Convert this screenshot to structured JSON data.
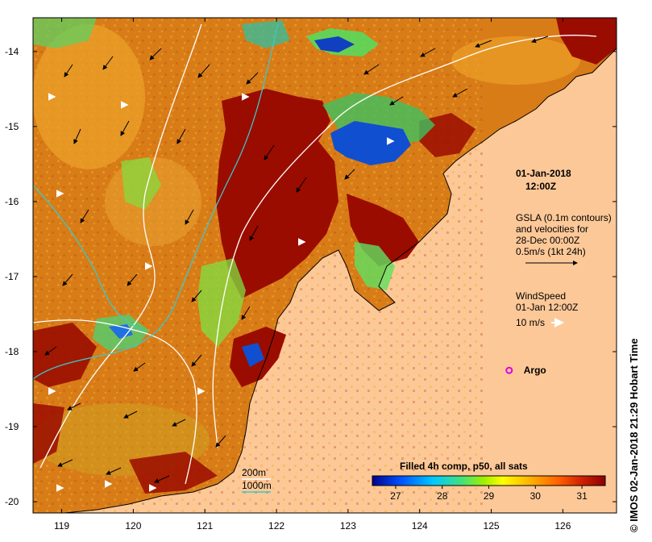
{
  "map": {
    "lat_ticks": [
      "-14",
      "-15",
      "-16",
      "-17",
      "-18",
      "-19",
      "-20"
    ],
    "lon_ticks": [
      "119",
      "120",
      "121",
      "122",
      "123",
      "124",
      "125",
      "126"
    ],
    "lat_range": [
      -20.15,
      -13.55
    ],
    "lon_range": [
      118.6,
      126.75
    ]
  },
  "info": {
    "date": "01-Jan-2018",
    "time": "12:00Z",
    "gsla_line1": "GSLA (0.1m contours)",
    "gsla_line2": "and velocities for",
    "gsla_line3": "28-Dec 00:00Z",
    "velocity_scale": "0.5m/s (1kt 24h)",
    "wind_title": "WindSpeed",
    "wind_time": "01-Jan 12:00Z",
    "wind_scale": "10 m/s"
  },
  "argo": {
    "label": "Argo",
    "lon": 125.25,
    "lat": -18.25,
    "color": "#e000e0"
  },
  "bathymetry_legend": {
    "label_200": "200m",
    "label_1000": "1000m",
    "color_200": "#ffffff",
    "color_1000": "#3cc8c8"
  },
  "colorbar": {
    "title": "Filled 4h comp, p50, all sats",
    "ticks": [
      "27",
      "28",
      "29",
      "30",
      "31"
    ],
    "min": 26.5,
    "max": 31.5,
    "colors": [
      "#00008c",
      "#0050ff",
      "#00c8ff",
      "#40e080",
      "#a0f000",
      "#ffff00",
      "#ffb000",
      "#ff6000",
      "#d02000",
      "#8c0000"
    ]
  },
  "colors": {
    "land": "#fdc898",
    "warm": "#d87c18",
    "hot": "#9a0c00",
    "mid": "#e0a020"
  },
  "credit": "© IMOS 02-Jan-2018 21:29 Hobart Time"
}
